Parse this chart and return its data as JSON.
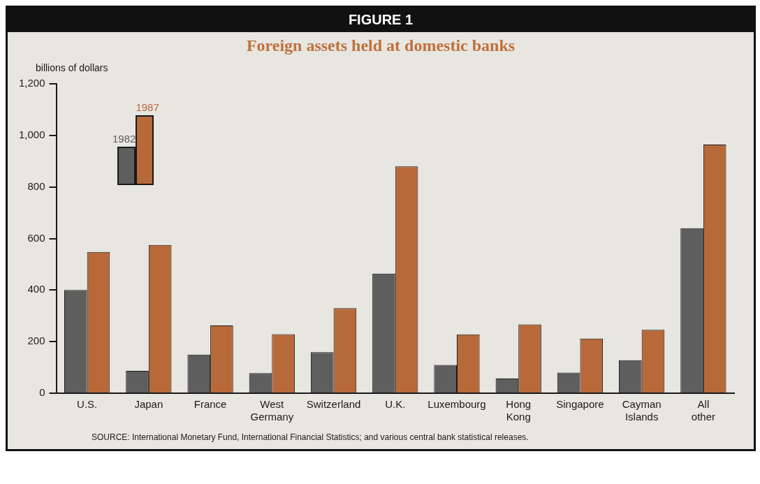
{
  "chart_data": {
    "type": "bar",
    "title": "FIGURE 1",
    "subtitle": "Foreign assets held at domestic banks",
    "ylabel": "billions of dollars",
    "categories": [
      "U.S.",
      "Japan",
      "France",
      "West Germany",
      "Switzerland",
      "U.K.",
      "Luxembourg",
      "Hong Kong",
      "Singapore",
      "Cayman Islands",
      "All other"
    ],
    "series": [
      {
        "name": "1982",
        "color": "#5e5e5e",
        "values": [
          400,
          87,
          150,
          78,
          159,
          464,
          110,
          57,
          80,
          128,
          640
        ]
      },
      {
        "name": "1987",
        "color": "#b8693a",
        "values": [
          548,
          575,
          263,
          229,
          330,
          880,
          228,
          267,
          212,
          246,
          964
        ]
      }
    ],
    "ylim": [
      0,
      1200
    ],
    "yticks": [
      {
        "value": 0,
        "label": "0"
      },
      {
        "value": 200,
        "label": "200"
      },
      {
        "value": 400,
        "label": "400"
      },
      {
        "value": 600,
        "label": "600"
      },
      {
        "value": 800,
        "label": "800"
      },
      {
        "value": 1000,
        "label": "1,000"
      },
      {
        "value": 1200,
        "label": "1,200"
      }
    ],
    "grid": false,
    "legend": "top left",
    "annotations": [
      "SOURCE: International Monetary Fund, International Financial Statistics; and various central bank statistical releases."
    ]
  }
}
